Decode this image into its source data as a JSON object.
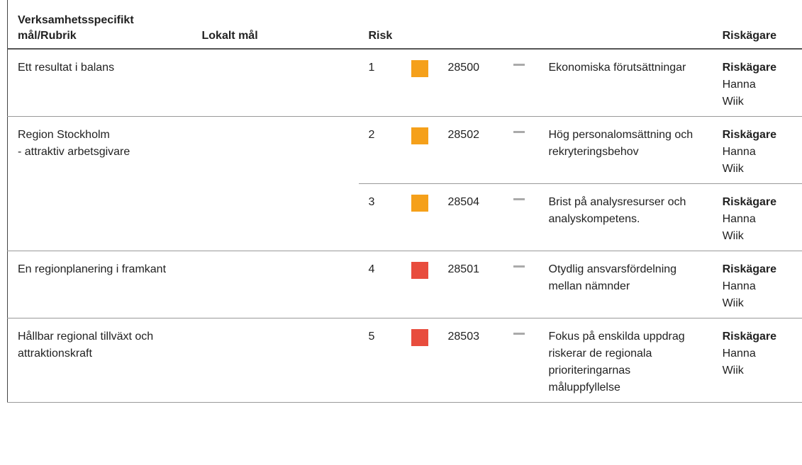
{
  "header": {
    "goal": "Verksamhetsspecifikt mål/Rubrik",
    "local": "Lokalt mål",
    "risk": "Risk",
    "owner": "Riskägare"
  },
  "groups": [
    {
      "goal": "Ett resultat i balans",
      "risks": [
        {
          "number": 1,
          "color": "#f5a01a",
          "id": 28500,
          "title": "Ekonomiska förutsättningar",
          "owner_label": "Riskägare",
          "owner": "Hanna Wiik"
        }
      ]
    },
    {
      "goal": "Region Stockholm\n- attraktiv arbetsgivare",
      "risks": [
        {
          "number": 2,
          "color": "#f5a01a",
          "id": 28502,
          "title": "Hög personalomsättning och rekryteringsbehov",
          "owner_label": "Riskägare",
          "owner": "Hanna Wiik"
        },
        {
          "number": 3,
          "color": "#f5a01a",
          "id": 28504,
          "title": "Brist på analysresurser och analyskompetens.",
          "owner_label": "Riskägare",
          "owner": "Hanna Wiik"
        }
      ]
    },
    {
      "goal": "En regionplanering i framkant",
      "risks": [
        {
          "number": 4,
          "color": "#e84c3d",
          "id": 28501,
          "title": "Otydlig ansvarsfördelning mellan nämnder",
          "owner_label": "Riskägare",
          "owner": "Hanna Wiik"
        }
      ]
    },
    {
      "goal": "Hållbar regional tillväxt och attraktionskraft",
      "risks": [
        {
          "number": 5,
          "color": "#e84c3d",
          "id": 28503,
          "title": "Fokus på enskilda uppdrag riskerar de regionala prioriteringarnas måluppfyllelse",
          "owner_label": "Riskägare",
          "owner": "Hanna Wiik"
        }
      ]
    }
  ]
}
